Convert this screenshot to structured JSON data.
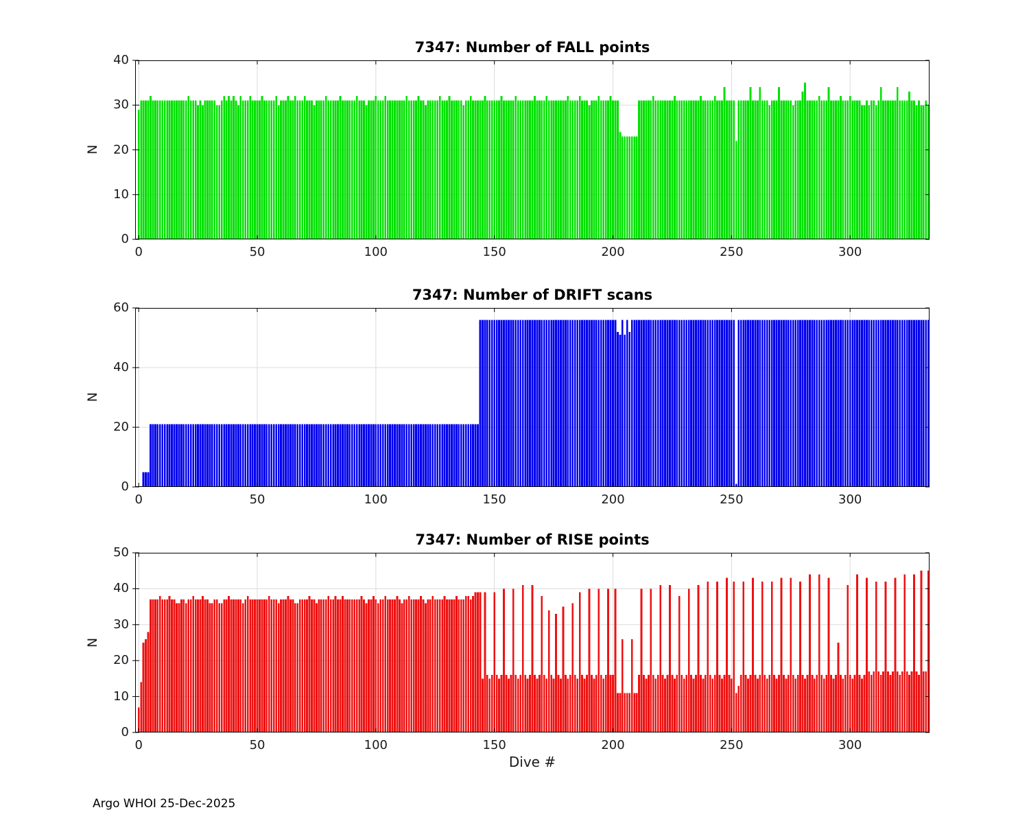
{
  "xlabel": "Dive #",
  "footer": {
    "credit": "Argo WHOI 25-Dec-2025"
  },
  "chart_data": [
    {
      "type": "bar",
      "title": "7347: Number of FALL points",
      "ylabel": "N",
      "bar_color": "#00e100",
      "grid": true,
      "ylim": [
        0,
        40
      ],
      "yticks": [
        0,
        10,
        20,
        30,
        40
      ],
      "xticks": [
        0,
        50,
        100,
        150,
        200,
        250,
        300
      ],
      "xlim": [
        -1.5,
        333.5
      ],
      "x_is_dive_index_from": 0,
      "values": [
        29,
        31,
        31,
        31,
        31,
        32,
        31,
        31,
        31,
        31,
        31,
        31,
        31,
        31,
        31,
        31,
        31,
        31,
        31,
        31,
        31,
        32,
        31,
        31,
        31,
        30,
        31,
        30,
        31,
        31,
        31,
        31,
        31,
        30,
        30,
        31,
        32,
        31,
        32,
        31,
        32,
        31,
        30,
        32,
        31,
        31,
        31,
        32,
        31,
        31,
        31,
        31,
        32,
        31,
        31,
        31,
        31,
        31,
        32,
        30,
        31,
        31,
        31,
        32,
        31,
        31,
        32,
        31,
        31,
        31,
        32,
        31,
        31,
        31,
        30,
        31,
        31,
        31,
        31,
        32,
        31,
        31,
        31,
        31,
        31,
        32,
        31,
        31,
        31,
        31,
        31,
        31,
        32,
        31,
        31,
        31,
        30,
        31,
        31,
        31,
        32,
        31,
        31,
        31,
        32,
        31,
        31,
        31,
        31,
        31,
        31,
        31,
        31,
        32,
        31,
        31,
        31,
        31,
        32,
        31,
        31,
        30,
        31,
        31,
        31,
        31,
        31,
        32,
        31,
        31,
        31,
        32,
        31,
        31,
        31,
        31,
        31,
        30,
        31,
        31,
        32,
        31,
        31,
        31,
        31,
        31,
        32,
        31,
        31,
        31,
        31,
        31,
        31,
        32,
        31,
        31,
        31,
        31,
        31,
        32,
        31,
        31,
        31,
        31,
        31,
        31,
        31,
        32,
        31,
        31,
        31,
        31,
        32,
        31,
        31,
        31,
        31,
        31,
        31,
        31,
        31,
        32,
        31,
        31,
        31,
        31,
        32,
        31,
        31,
        31,
        30,
        31,
        31,
        31,
        32,
        31,
        31,
        31,
        31,
        32,
        31,
        31,
        31,
        24,
        23,
        23,
        23,
        23,
        23,
        23,
        23,
        31,
        31,
        31,
        31,
        31,
        31,
        32,
        31,
        31,
        31,
        31,
        31,
        31,
        31,
        31,
        32,
        31,
        31,
        31,
        31,
        31,
        31,
        31,
        31,
        31,
        31,
        32,
        31,
        31,
        31,
        31,
        31,
        32,
        31,
        31,
        31,
        34,
        31,
        31,
        31,
        31,
        22,
        31,
        31,
        31,
        31,
        31,
        34,
        31,
        31,
        31,
        34,
        31,
        31,
        31,
        30,
        31,
        31,
        31,
        34,
        31,
        31,
        31,
        31,
        31,
        30,
        31,
        31,
        31,
        33,
        35,
        31,
        31,
        31,
        31,
        31,
        32,
        31,
        31,
        31,
        34,
        31,
        31,
        31,
        31,
        32,
        31,
        31,
        31,
        32,
        31,
        31,
        31,
        31,
        30,
        30,
        31,
        30,
        31,
        31,
        30,
        31,
        34,
        31,
        31,
        31,
        31,
        31,
        31,
        34,
        31,
        31,
        31,
        31,
        33,
        31,
        31,
        30,
        31,
        30,
        30,
        31,
        30
      ]
    },
    {
      "type": "bar",
      "title": "7347: Number of DRIFT scans",
      "ylabel": "N",
      "bar_color": "#0000ee",
      "grid": true,
      "ylim": [
        0,
        60
      ],
      "yticks": [
        0,
        20,
        40,
        60
      ],
      "xticks": [
        0,
        50,
        100,
        150,
        200,
        250,
        300
      ],
      "xlim": [
        -1.5,
        333.5
      ],
      "x_is_dive_index_from": 0,
      "values": [
        0,
        0,
        5,
        5,
        5,
        21,
        21,
        21,
        21,
        21,
        21,
        21,
        21,
        21,
        21,
        21,
        21,
        21,
        21,
        21,
        21,
        21,
        21,
        21,
        21,
        21,
        21,
        21,
        21,
        21,
        21,
        21,
        21,
        21,
        21,
        21,
        21,
        21,
        21,
        21,
        21,
        21,
        21,
        21,
        21,
        21,
        21,
        21,
        21,
        21,
        21,
        21,
        21,
        21,
        21,
        21,
        21,
        21,
        21,
        21,
        21,
        21,
        21,
        21,
        21,
        21,
        21,
        21,
        21,
        21,
        21,
        21,
        21,
        21,
        21,
        21,
        21,
        21,
        21,
        21,
        21,
        21,
        21,
        21,
        21,
        21,
        21,
        21,
        21,
        21,
        21,
        21,
        21,
        21,
        21,
        21,
        21,
        21,
        21,
        21,
        21,
        21,
        21,
        21,
        21,
        21,
        21,
        21,
        21,
        21,
        21,
        21,
        21,
        21,
        21,
        21,
        21,
        21,
        21,
        21,
        21,
        21,
        21,
        21,
        21,
        21,
        21,
        21,
        21,
        21,
        21,
        21,
        21,
        21,
        21,
        21,
        21,
        21,
        21,
        21,
        21,
        21,
        21,
        21,
        56,
        56,
        56,
        56,
        56,
        56,
        56,
        56,
        56,
        56,
        56,
        56,
        56,
        56,
        56,
        56,
        56,
        56,
        56,
        56,
        56,
        56,
        56,
        56,
        56,
        56,
        56,
        56,
        56,
        56,
        56,
        56,
        56,
        56,
        56,
        56,
        56,
        56,
        56,
        56,
        56,
        56,
        56,
        56,
        56,
        56,
        56,
        56,
        56,
        56,
        56,
        56,
        56,
        56,
        56,
        56,
        56,
        56,
        52,
        51,
        56,
        51,
        56,
        52,
        56,
        56,
        56,
        56,
        56,
        56,
        56,
        56,
        56,
        56,
        56,
        56,
        56,
        56,
        56,
        56,
        56,
        56,
        56,
        56,
        56,
        56,
        56,
        56,
        56,
        56,
        56,
        56,
        56,
        56,
        56,
        56,
        56,
        56,
        56,
        56,
        56,
        56,
        56,
        56,
        56,
        56,
        56,
        56,
        1,
        56,
        56,
        56,
        56,
        56,
        56,
        56,
        56,
        56,
        56,
        56,
        56,
        56,
        56,
        56,
        56,
        56,
        56,
        56,
        56,
        56,
        56,
        56,
        56,
        56,
        56,
        56,
        56,
        56,
        56,
        56,
        56,
        56,
        56,
        56,
        56,
        56,
        56,
        56,
        56,
        56,
        56,
        56,
        56,
        56,
        56,
        56,
        56,
        56,
        56,
        56,
        56,
        56,
        56,
        56,
        56,
        56,
        56,
        56,
        56,
        56,
        56,
        56,
        56,
        56,
        56,
        56,
        56,
        56,
        56,
        56,
        56,
        56,
        56,
        56,
        56,
        56,
        56,
        56,
        56,
        56
      ]
    },
    {
      "type": "bar",
      "title": "7347: Number of RISE points",
      "ylabel": "N",
      "bar_color": "#ee1111",
      "grid": true,
      "ylim": [
        0,
        50
      ],
      "yticks": [
        0,
        10,
        20,
        30,
        40,
        50
      ],
      "xticks": [
        0,
        50,
        100,
        150,
        200,
        250,
        300
      ],
      "xlim": [
        -1.5,
        333.5
      ],
      "x_is_dive_index_from": 0,
      "values": [
        7,
        14,
        25,
        26,
        28,
        37,
        37,
        37,
        37,
        38,
        37,
        37,
        37,
        38,
        37,
        37,
        36,
        36,
        37,
        37,
        36,
        37,
        37,
        38,
        37,
        37,
        37,
        38,
        37,
        37,
        36,
        36,
        37,
        37,
        36,
        36,
        37,
        37,
        38,
        37,
        37,
        37,
        37,
        37,
        36,
        37,
        38,
        37,
        37,
        37,
        37,
        37,
        37,
        37,
        37,
        38,
        37,
        37,
        37,
        36,
        37,
        37,
        37,
        38,
        37,
        37,
        36,
        36,
        37,
        37,
        37,
        37,
        38,
        37,
        37,
        36,
        37,
        37,
        37,
        37,
        38,
        37,
        37,
        38,
        37,
        37,
        38,
        37,
        37,
        37,
        37,
        37,
        37,
        37,
        38,
        37,
        36,
        37,
        37,
        38,
        37,
        36,
        37,
        37,
        38,
        37,
        37,
        37,
        37,
        38,
        37,
        36,
        37,
        37,
        38,
        37,
        37,
        37,
        37,
        38,
        37,
        36,
        37,
        37,
        38,
        37,
        37,
        37,
        37,
        38,
        37,
        37,
        37,
        37,
        38,
        37,
        37,
        37,
        38,
        38,
        37,
        38,
        39,
        39,
        39,
        15,
        39,
        16,
        15,
        16,
        39,
        16,
        15,
        16,
        40,
        16,
        15,
        16,
        40,
        16,
        15,
        16,
        41,
        16,
        15,
        16,
        41,
        16,
        15,
        16,
        38,
        16,
        15,
        34,
        16,
        15,
        33,
        16,
        15,
        35,
        16,
        15,
        16,
        36,
        16,
        15,
        39,
        16,
        15,
        16,
        40,
        16,
        15,
        16,
        40,
        16,
        15,
        16,
        40,
        16,
        16,
        40,
        11,
        11,
        26,
        11,
        11,
        11,
        26,
        11,
        11,
        16,
        40,
        16,
        15,
        16,
        40,
        16,
        15,
        16,
        41,
        16,
        15,
        16,
        41,
        16,
        15,
        16,
        38,
        16,
        15,
        16,
        40,
        16,
        15,
        16,
        41,
        16,
        15,
        16,
        42,
        16,
        15,
        16,
        42,
        16,
        15,
        16,
        43,
        16,
        15,
        42,
        11,
        13,
        16,
        42,
        16,
        15,
        16,
        43,
        16,
        15,
        16,
        42,
        16,
        15,
        16,
        42,
        16,
        15,
        16,
        43,
        16,
        15,
        16,
        43,
        16,
        15,
        16,
        42,
        16,
        15,
        16,
        44,
        16,
        15,
        16,
        44,
        16,
        15,
        16,
        43,
        16,
        15,
        16,
        25,
        16,
        15,
        16,
        41,
        16,
        15,
        16,
        44,
        16,
        15,
        16,
        43,
        17,
        16,
        17,
        42,
        17,
        16,
        17,
        42,
        17,
        16,
        17,
        43,
        17,
        16,
        17,
        44,
        17,
        16,
        17,
        44,
        17,
        16,
        45,
        17,
        17,
        45
      ]
    }
  ]
}
